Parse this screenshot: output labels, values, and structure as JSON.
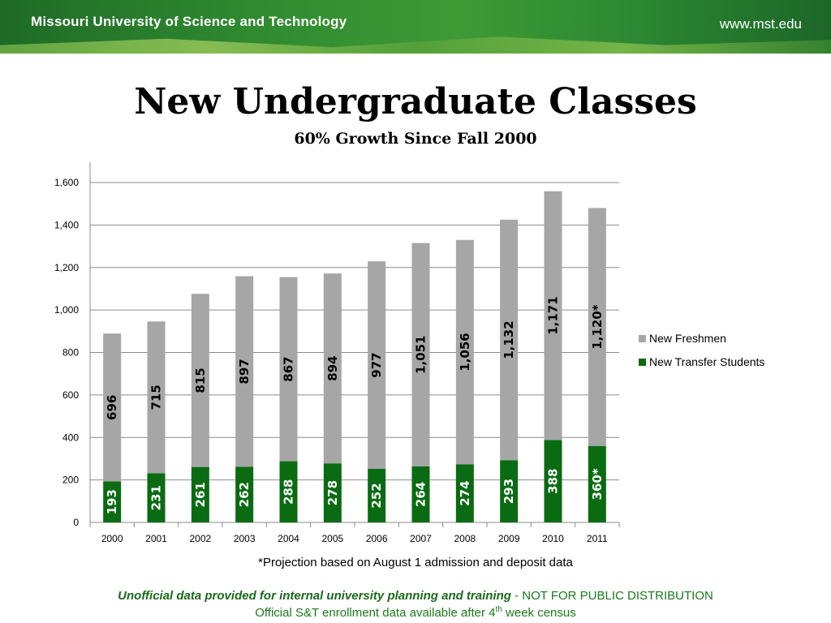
{
  "header": {
    "university": "Missouri University of Science and Technology",
    "url": "www.mst.edu"
  },
  "slide": {
    "title": "New Undergraduate Classes",
    "subtitle": "60% Growth Since Fall 2000"
  },
  "footer": {
    "footnote": "*Projection based on August 1 admission and deposit data",
    "disclaimer_bold": "Unofficial data provided for internal university planning and training",
    "disclaimer_rest": " - NOT FOR PUBLIC DISTRIBUTION",
    "census_prefix": "Official S&T enrollment data available  after 4",
    "census_sup": "th",
    "census_suffix": " week census"
  },
  "chart_data": {
    "type": "bar",
    "stacked": true,
    "categories": [
      "2000",
      "2001",
      "2002",
      "2003",
      "2004",
      "2005",
      "2006",
      "2007",
      "2008",
      "2009",
      "2010",
      "2011"
    ],
    "series": [
      {
        "name": "New Transfer Students",
        "color": "#0a6b12",
        "values": [
          193,
          231,
          261,
          262,
          288,
          278,
          252,
          264,
          274,
          293,
          388,
          360
        ],
        "labels": [
          "193",
          "231",
          "261",
          "262",
          "288",
          "278",
          "252",
          "264",
          "274",
          "293",
          "388",
          "360*"
        ]
      },
      {
        "name": "New Freshmen",
        "color": "#a6a6a6",
        "values": [
          696,
          715,
          815,
          897,
          867,
          894,
          977,
          1051,
          1056,
          1132,
          1171,
          1120
        ],
        "labels": [
          "696",
          "715",
          "815",
          "897",
          "867",
          "894",
          "977",
          "1,051",
          "1,056",
          "1,132",
          "1,171",
          "1,120*"
        ]
      }
    ],
    "ylim": [
      0,
      1600
    ],
    "yticks": [
      0,
      200,
      400,
      600,
      800,
      1000,
      1200,
      1400,
      1600
    ],
    "ytick_labels": [
      "0",
      "200",
      "400",
      "600",
      "800",
      "1,000",
      "1,200",
      "1,400",
      "1,600"
    ],
    "grid": true,
    "legend": "right"
  }
}
